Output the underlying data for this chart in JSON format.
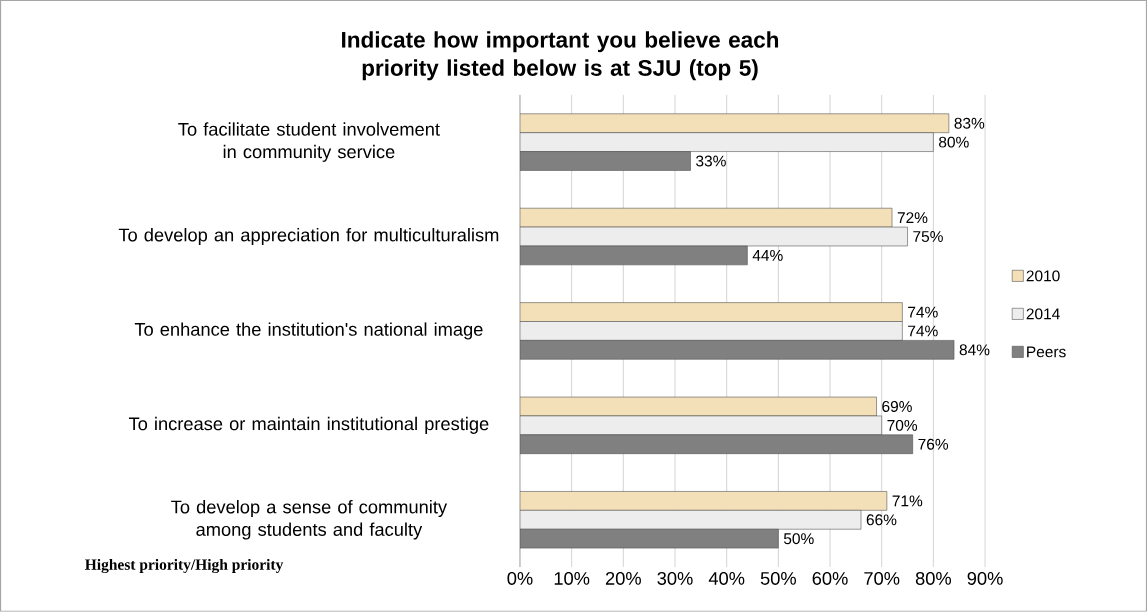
{
  "chart_data": {
    "type": "bar",
    "orientation": "horizontal",
    "title": "Indicate how important you believe each priority listed below is at SJU (top 5)",
    "categories": [
      "To facilitate student involvement in community service",
      "To develop an appreciation for multiculturalism",
      "To enhance the institution's national image",
      "To increase or maintain institutional prestige",
      "To develop a sense of community among students and faculty"
    ],
    "series": [
      {
        "name": "2010",
        "color": "#f3dfb8",
        "values": [
          83,
          72,
          74,
          69,
          71
        ],
        "value_labels": [
          "83%",
          "72%",
          "74%",
          "69%",
          "71%"
        ]
      },
      {
        "name": "2014",
        "color": "#ededed",
        "values": [
          80,
          75,
          74,
          70,
          66
        ],
        "value_labels": [
          "80%",
          "75%",
          "74%",
          "70%",
          "66%"
        ]
      },
      {
        "name": "Peers",
        "color": "#808080",
        "values": [
          33,
          44,
          84,
          76,
          50
        ],
        "value_labels": [
          "33%",
          "44%",
          "84%",
          "76%",
          "50%"
        ]
      }
    ],
    "xlim": [
      0,
      90
    ],
    "xticks": [
      {
        "value": 0,
        "label": "0%"
      },
      {
        "value": 10,
        "label": "10%"
      },
      {
        "value": 20,
        "label": "20%"
      },
      {
        "value": 30,
        "label": "30%"
      },
      {
        "value": 40,
        "label": "40%"
      },
      {
        "value": 50,
        "label": "50%"
      },
      {
        "value": 60,
        "label": "60%"
      },
      {
        "value": 70,
        "label": "70%"
      },
      {
        "value": 80,
        "label": "80%"
      },
      {
        "value": 90,
        "label": "90%"
      }
    ],
    "grid": "x",
    "legend": "right",
    "annotations": [
      "Highest priority/High priority"
    ]
  }
}
